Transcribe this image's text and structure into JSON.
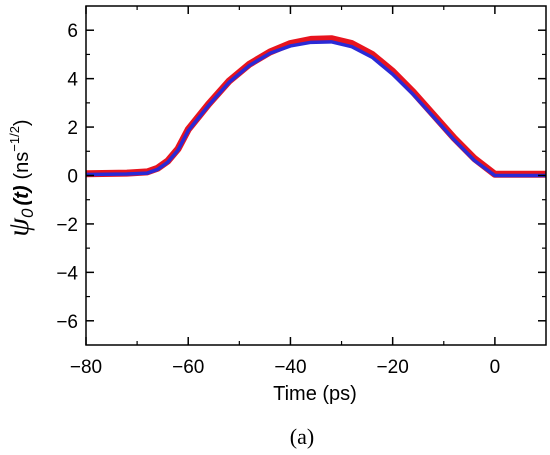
{
  "chart_data": {
    "type": "line",
    "xlabel": "Time (ps)",
    "ylabel": {
      "symbol": "ψ",
      "subscript": "0",
      "argument": "(t)",
      "unit_prefix": "(ns",
      "unit_exponent": "−1/2",
      "unit_suffix": ")"
    },
    "xlim": [
      -80,
      10
    ],
    "ylim": [
      -7,
      7
    ],
    "x_ticks": [
      -80,
      -60,
      -40,
      -20,
      0
    ],
    "x_tick_labels": [
      "−80",
      "−60",
      "−40",
      "−20",
      "0"
    ],
    "y_ticks": [
      -6,
      -4,
      -2,
      0,
      2,
      4,
      6
    ],
    "y_tick_labels": [
      "−6",
      "−4",
      "−2",
      "0",
      "2",
      "4",
      "6"
    ],
    "grid": false,
    "legend": "none",
    "series": [
      {
        "color": "#e8141e",
        "x": [
          -80,
          -72,
          -68,
          -66,
          -64,
          -62,
          -60,
          -56,
          -52,
          -48,
          -44,
          -40,
          -36,
          -32,
          -28,
          -24,
          -20,
          -16,
          -12,
          -8,
          -4,
          0,
          10
        ],
        "y": [
          0.07,
          0.1,
          0.15,
          0.3,
          0.6,
          1.1,
          1.9,
          2.95,
          3.9,
          4.6,
          5.1,
          5.45,
          5.62,
          5.65,
          5.45,
          5.0,
          4.3,
          3.45,
          2.5,
          1.55,
          0.7,
          0.05,
          0.05
        ]
      },
      {
        "color": "#2a2ad6",
        "x": [
          -80,
          -72,
          -68,
          -66,
          -64,
          -62,
          -60,
          -56,
          -52,
          -48,
          -44,
          -40,
          -36,
          -32,
          -28,
          -24,
          -20,
          -16,
          -12,
          -8,
          -4,
          0,
          10
        ],
        "y": [
          0.04,
          0.06,
          0.1,
          0.25,
          0.55,
          1.05,
          1.85,
          2.9,
          3.85,
          4.55,
          5.05,
          5.35,
          5.5,
          5.52,
          5.32,
          4.88,
          4.18,
          3.35,
          2.42,
          1.48,
          0.62,
          0.0,
          0.0
        ]
      }
    ]
  },
  "caption": "(a)"
}
